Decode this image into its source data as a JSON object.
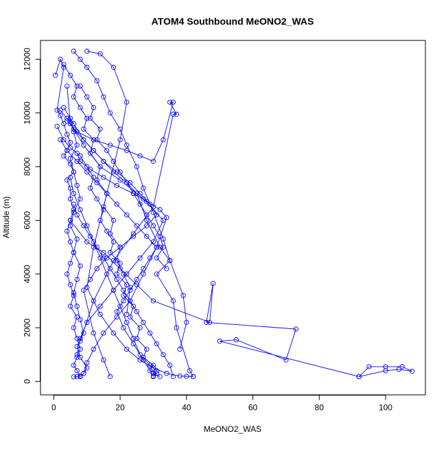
{
  "chart_data": {
    "type": "scatter",
    "title": "ATOM4 Southbound MeONO2_WAS",
    "xlabel": "MeONO2_WAS",
    "ylabel": "Altitude (m)",
    "xlim": [
      -4,
      112
    ],
    "ylim": [
      -500,
      12700
    ],
    "x_ticks": [
      0,
      20,
      40,
      60,
      80,
      100
    ],
    "y_ticks": [
      0,
      2000,
      4000,
      6000,
      8000,
      10000,
      12000
    ],
    "grid": false,
    "marker": "open-circle",
    "connected": true,
    "color": "#0000ff",
    "series": [
      {
        "name": "",
        "x": [
          0.5,
          2,
          3,
          1,
          2,
          3,
          4,
          5,
          4,
          3,
          5,
          6,
          4,
          5,
          5,
          6,
          5,
          4,
          5,
          6,
          5,
          4,
          5,
          6,
          5,
          7,
          6,
          7,
          8,
          7,
          6,
          7,
          8,
          7,
          6
        ],
        "y": [
          11400,
          12000,
          11700,
          10100,
          9900,
          9600,
          9200,
          8900,
          8600,
          8400,
          8100,
          7800,
          7500,
          7200,
          6800,
          6400,
          6000,
          5600,
          5200,
          4800,
          4400,
          4000,
          3600,
          3200,
          2800,
          2400,
          2000,
          1600,
          1200,
          900,
          600,
          400,
          200,
          180,
          170
        ]
      },
      {
        "name": "",
        "x": [
          1,
          3,
          5,
          8,
          10,
          12,
          11,
          13,
          15,
          14,
          16,
          18,
          17,
          20,
          19,
          22,
          21,
          24,
          23,
          26,
          25,
          28,
          27,
          30,
          29,
          31,
          30
        ],
        "y": [
          9500,
          9000,
          8700,
          8400,
          8000,
          7600,
          7200,
          6800,
          6400,
          6000,
          5600,
          5200,
          4800,
          4400,
          4000,
          3600,
          3200,
          2800,
          2400,
          2000,
          1600,
          1200,
          900,
          600,
          400,
          300,
          180
        ]
      },
      {
        "name": "",
        "x": [
          2,
          4,
          6,
          9,
          12,
          15,
          18,
          22,
          25,
          28,
          32,
          35,
          31,
          36,
          37,
          41,
          42
        ],
        "y": [
          10100,
          9800,
          9400,
          9000,
          8600,
          8200,
          7800,
          7400,
          7000,
          6000,
          5000,
          4500,
          4000,
          3000,
          2000,
          400,
          180
        ]
      },
      {
        "name": "",
        "x": [
          3,
          5,
          7,
          6,
          8,
          10,
          9,
          12,
          11,
          14,
          13,
          16,
          15,
          18,
          17,
          20,
          19,
          21,
          23,
          22
        ],
        "y": [
          11800,
          11400,
          11000,
          10600,
          10200,
          9800,
          9400,
          9000,
          8500,
          8000,
          7500,
          7000,
          6500,
          6000,
          5500,
          5000,
          4500,
          4000,
          3500,
          2500
        ]
      },
      {
        "name": "",
        "x": [
          5,
          10,
          15,
          20,
          25,
          30,
          47,
          48,
          46,
          73,
          70,
          55,
          50,
          92,
          95,
          100,
          105,
          108,
          104,
          100,
          92
        ],
        "y": [
          6000,
          5200,
          4800,
          4200,
          3600,
          3000,
          2200,
          3650,
          2200,
          1950,
          800,
          1550,
          1500,
          180,
          550,
          550,
          550,
          380,
          450,
          400,
          180
        ]
      },
      {
        "name": "",
        "x": [
          4,
          7,
          12,
          17,
          22,
          26,
          30,
          33,
          36,
          35,
          37,
          36,
          30,
          24,
          18,
          12,
          8
        ],
        "y": [
          9700,
          9300,
          9000,
          8800,
          8600,
          8400,
          8200,
          9000,
          10400,
          10400,
          9950,
          9950,
          6500,
          5500,
          4500,
          3000,
          1500
        ]
      },
      {
        "name": "",
        "x": [
          6,
          8,
          10,
          13,
          15,
          17,
          20,
          22,
          25,
          27,
          30,
          33,
          35,
          39,
          40,
          38
        ],
        "y": [
          12300,
          12000,
          11700,
          11200,
          10600,
          10000,
          9400,
          8800,
          8000,
          7200,
          6300,
          5300,
          4500,
          3200,
          2200,
          1200
        ]
      },
      {
        "name": "",
        "x": [
          5,
          6,
          7,
          5,
          6,
          7,
          8,
          6,
          5,
          7,
          6,
          8,
          7,
          6,
          7,
          8,
          9,
          7,
          8,
          10,
          9,
          8
        ],
        "y": [
          9800,
          9300,
          8800,
          8300,
          7800,
          7300,
          6800,
          6300,
          5800,
          5300,
          4800,
          4300,
          3800,
          3300,
          2800,
          2300,
          1800,
          1300,
          900,
          500,
          300,
          180
        ]
      },
      {
        "name": "",
        "x": [
          8,
          10,
          12,
          11,
          14,
          13,
          16,
          18,
          20,
          22,
          24,
          26,
          28,
          30,
          32,
          33,
          31,
          34
        ],
        "y": [
          11000,
          10600,
          10200,
          9800,
          9400,
          9000,
          8600,
          8200,
          7800,
          7400,
          7000,
          6600,
          6200,
          5800,
          5400,
          5000,
          4600,
          4200
        ]
      },
      {
        "name": "",
        "x": [
          10,
          14,
          18,
          22,
          20,
          16,
          12,
          10,
          14,
          18,
          22,
          26,
          30,
          34,
          38,
          40,
          42
        ],
        "y": [
          12300,
          12200,
          11700,
          10400,
          9000,
          7000,
          5000,
          3500,
          2500,
          1800,
          1200,
          800,
          500,
          300,
          200,
          190,
          180
        ]
      },
      {
        "name": "",
        "x": [
          4,
          5,
          9,
          14,
          20,
          27,
          33,
          30,
          26,
          22,
          18,
          14,
          10,
          8,
          7
        ],
        "y": [
          11000,
          9600,
          8800,
          8000,
          7500,
          6800,
          6000,
          5200,
          4600,
          4000,
          3400,
          2800,
          2200,
          1600,
          1000
        ]
      },
      {
        "name": "",
        "x": [
          3,
          6,
          9,
          12,
          15,
          19,
          23,
          26,
          29,
          31,
          28,
          24,
          20,
          16,
          13,
          11,
          9,
          12,
          15,
          17
        ],
        "y": [
          10200,
          9600,
          9000,
          8600,
          8200,
          7800,
          7400,
          7000,
          6600,
          6200,
          5800,
          5400,
          5000,
          4600,
          4200,
          3800,
          3400,
          1800,
          800,
          180
        ]
      },
      {
        "name": "",
        "x": [
          2,
          4,
          7,
          10,
          13,
          16,
          19,
          22,
          25,
          28,
          31,
          29,
          27,
          25,
          23,
          21,
          19,
          21,
          24,
          27,
          30
        ],
        "y": [
          9000,
          8600,
          8200,
          7800,
          7400,
          7000,
          6600,
          6200,
          5800,
          5400,
          5000,
          4600,
          4200,
          3800,
          3400,
          3000,
          2600,
          2000,
          1400,
          800,
          200
        ]
      },
      {
        "name": "",
        "x": [
          7,
          8,
          11,
          15,
          19,
          24,
          28,
          32,
          34,
          31,
          27,
          23,
          19,
          15,
          12,
          10,
          9
        ],
        "y": [
          8500,
          8200,
          7900,
          7600,
          7300,
          7000,
          6700,
          6400,
          6100,
          5000,
          4000,
          3000,
          2400,
          1800,
          1200,
          700,
          300
        ]
      },
      {
        "name": "",
        "x": [
          5,
          6,
          8,
          10,
          12,
          14,
          16,
          18,
          20,
          22,
          24,
          26,
          29,
          31,
          30,
          32
        ],
        "y": [
          7600,
          7000,
          6400,
          5800,
          5200,
          4600,
          4000,
          3400,
          2800,
          2200,
          1600,
          1000,
          600,
          400,
          300,
          180
        ]
      },
      {
        "name": "",
        "x": [
          6,
          7,
          9,
          11,
          13,
          15,
          17,
          19,
          21,
          23,
          25,
          27,
          29,
          31,
          33,
          35,
          36
        ],
        "y": [
          6600,
          6200,
          5800,
          5400,
          5000,
          4600,
          4200,
          3800,
          3400,
          3000,
          2600,
          2200,
          1800,
          1400,
          1000,
          600,
          180
        ]
      }
    ]
  }
}
